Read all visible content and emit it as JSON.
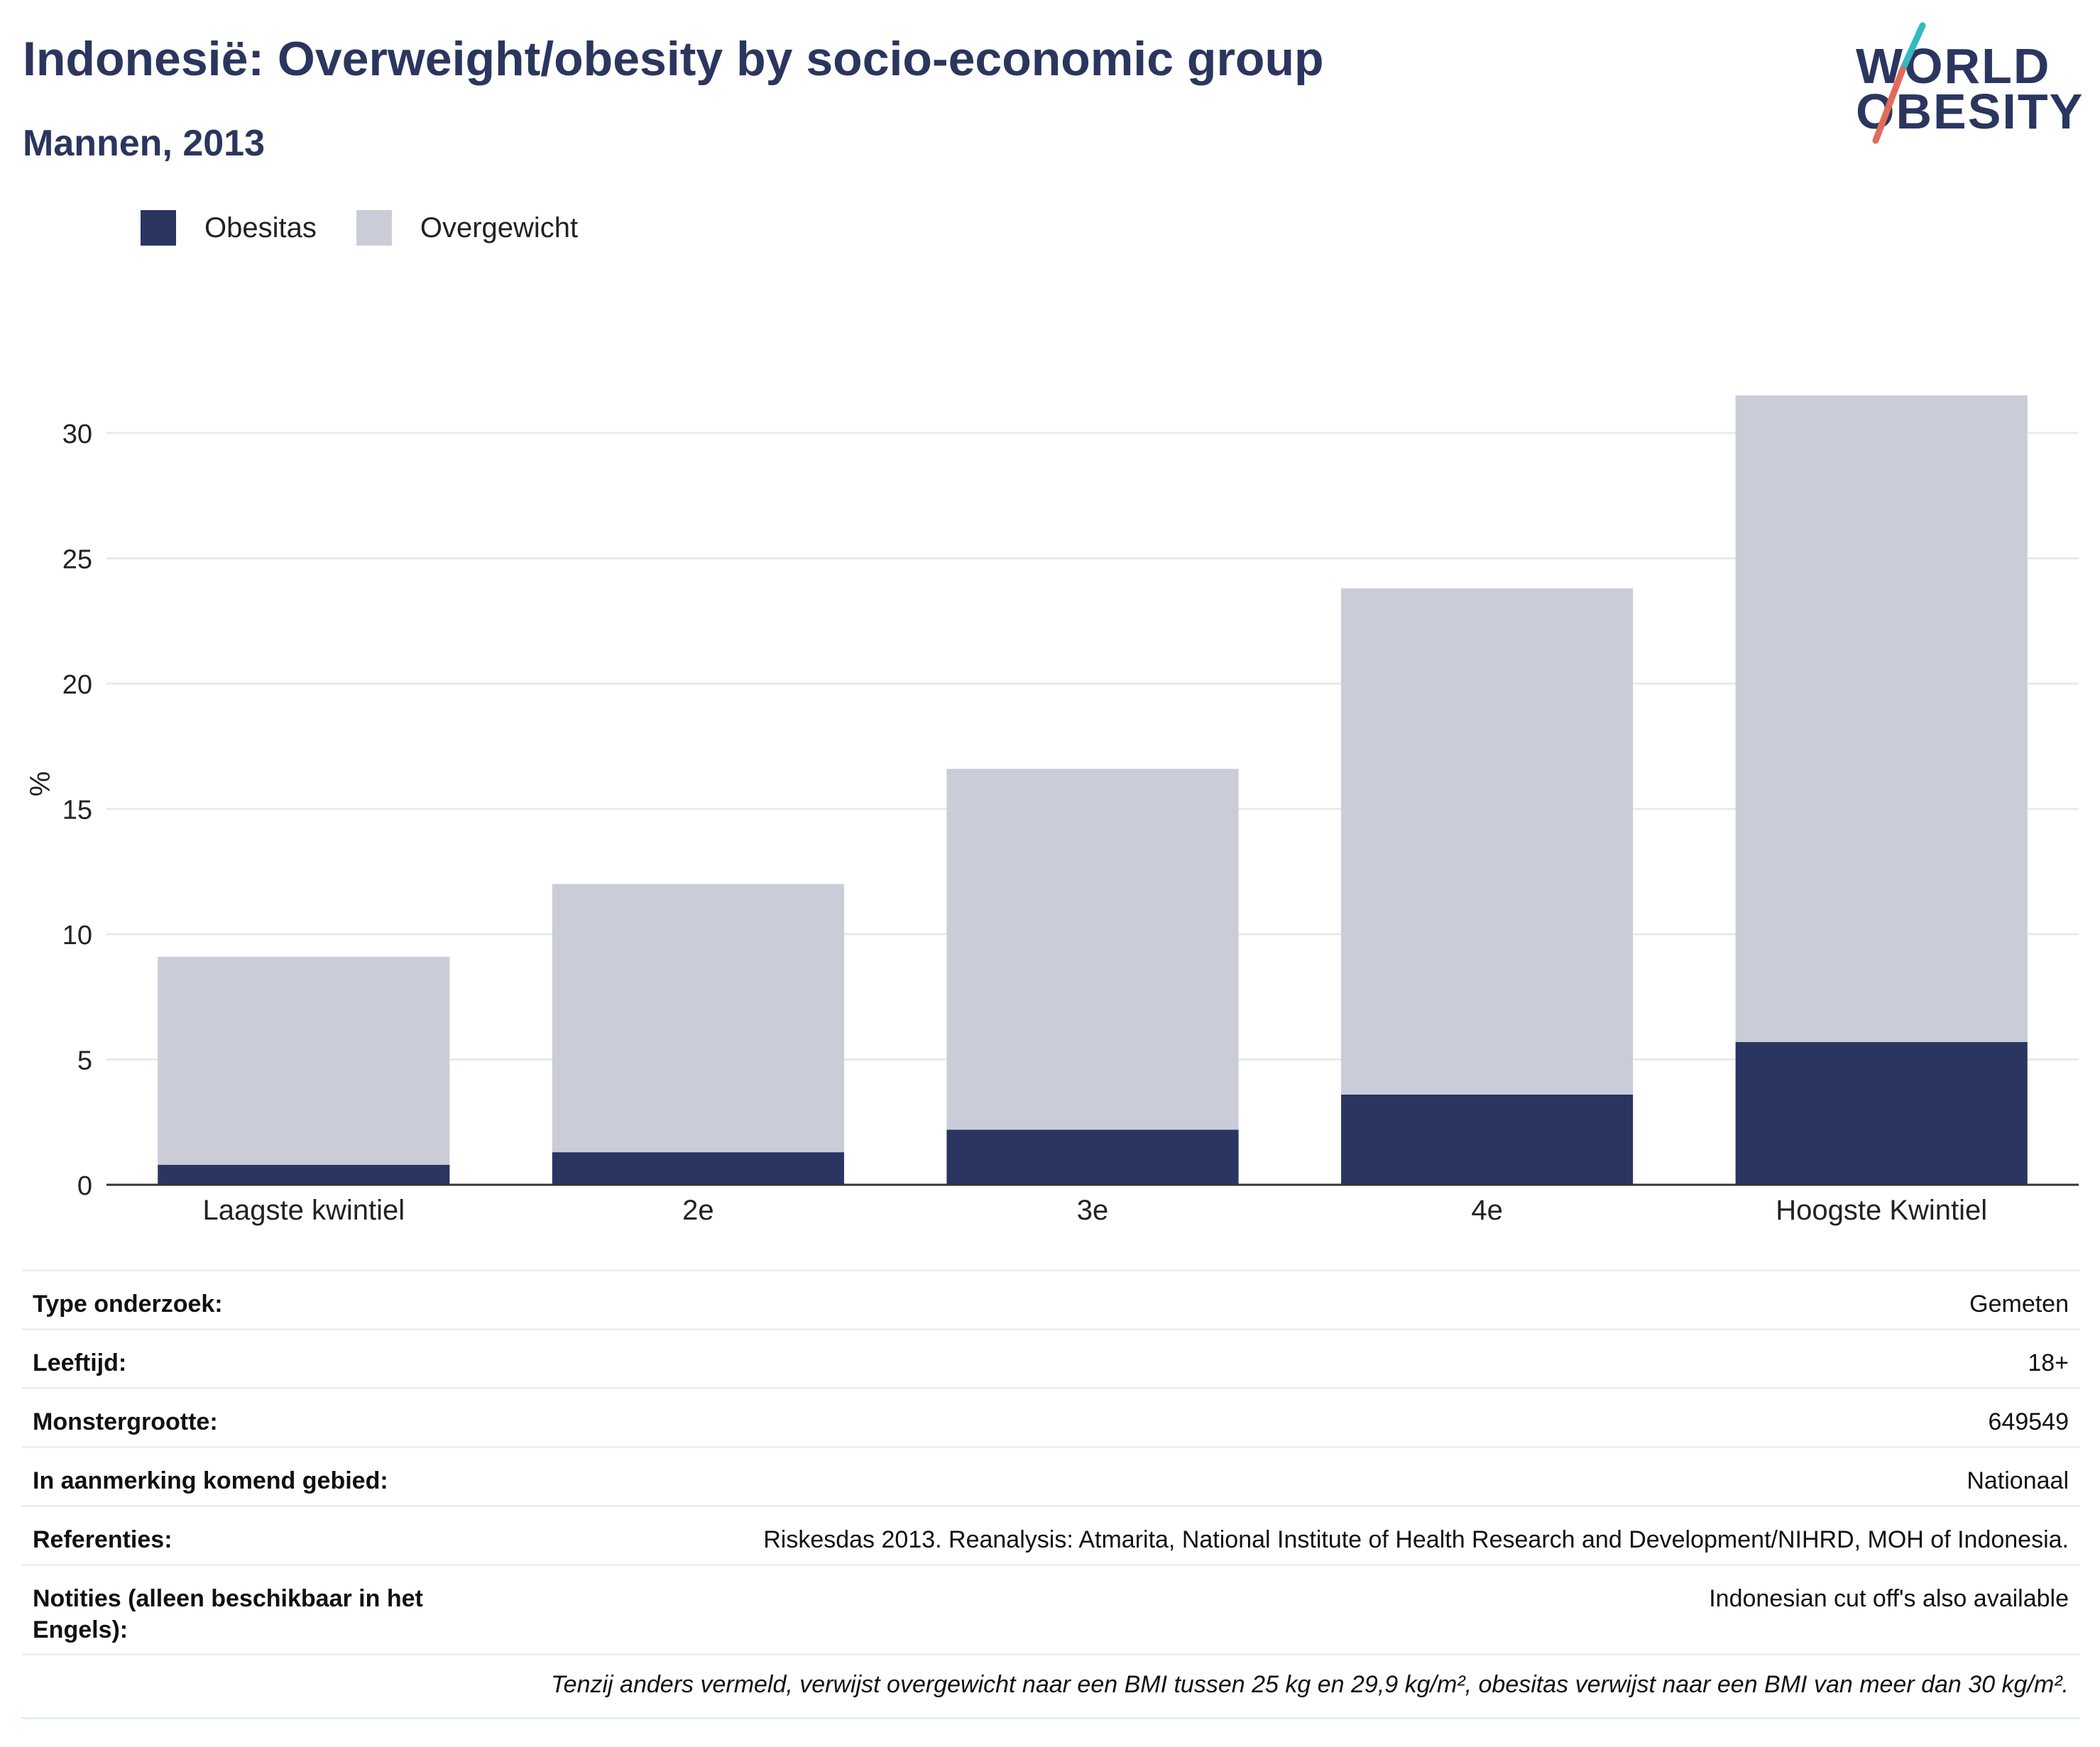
{
  "title": "Indonesië: Overweight/obesity by socio-economic group",
  "subtitle": "Mannen, 2013",
  "logo": {
    "line1": "WORLD",
    "line2": "OBESITY"
  },
  "colors": {
    "obesitas": "#2b3562",
    "overgewicht": "#caccd8",
    "grid": "#e8eaee",
    "axis": "#333333",
    "title": "#2b365f",
    "logo_teal": "#35b8c0",
    "logo_coral": "#e26a5a"
  },
  "legend": [
    {
      "label": "Obesitas",
      "color": "#2b3562"
    },
    {
      "label": "Overgewicht",
      "color": "#caccd8"
    }
  ],
  "chart_data": {
    "type": "bar",
    "stacked": true,
    "categories": [
      "Laagste kwintiel",
      "2e",
      "3e",
      "4e",
      "Hoogste Kwintiel"
    ],
    "series": [
      {
        "name": "Obesitas",
        "values": [
          0.8,
          1.3,
          2.2,
          3.6,
          5.7
        ]
      },
      {
        "name": "Overgewicht",
        "values": [
          8.3,
          10.7,
          14.4,
          20.2,
          25.8
        ]
      }
    ],
    "ylabel": "%",
    "ylim": [
      0,
      32
    ],
    "yticks": [
      0,
      5,
      10,
      15,
      20,
      25,
      30
    ],
    "grid": true,
    "legend_position": "top-left"
  },
  "meta": [
    {
      "label": "Type onderzoek:",
      "value": "Gemeten"
    },
    {
      "label": "Leeftijd:",
      "value": "18+"
    },
    {
      "label": "Monstergrootte:",
      "value": "649549"
    },
    {
      "label": "In aanmerking komend gebied:",
      "value": "Nationaal"
    },
    {
      "label": "Referenties:",
      "value": "Riskesdas 2013. Reanalysis: Atmarita, National Institute of Health Research and Development/NIHRD, MOH of Indonesia."
    },
    {
      "label": "Notities (alleen beschikbaar in het Engels):",
      "value": "Indonesian cut off's also available"
    }
  ],
  "note": "Tenzij anders vermeld, verwijst overgewicht naar een BMI tussen 25 kg en 29,9 kg/m², obesitas verwijst naar een BMI van meer dan 30 kg/m²."
}
